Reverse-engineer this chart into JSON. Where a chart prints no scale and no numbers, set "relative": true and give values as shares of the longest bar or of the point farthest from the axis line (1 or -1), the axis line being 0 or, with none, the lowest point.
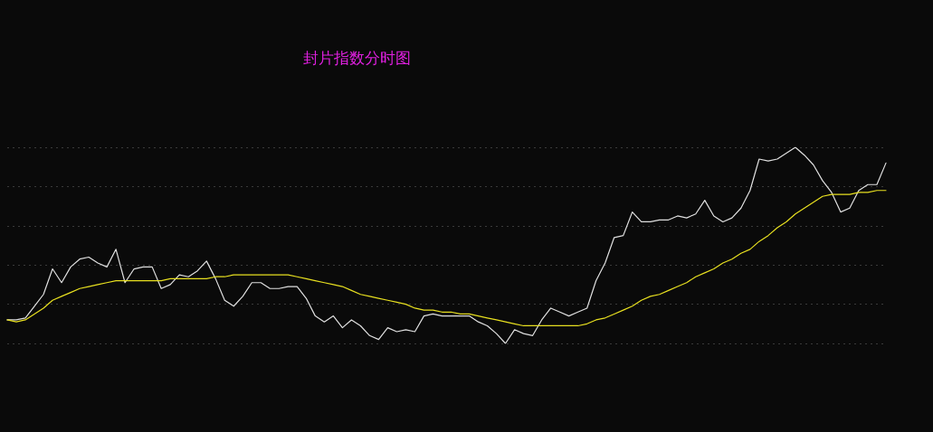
{
  "chart_data": {
    "type": "line",
    "title": "封片指数分时图",
    "relative": true,
    "grid": "y",
    "marker": "none",
    "line_style": "solid",
    "categories": [
      null,
      null,
      null,
      null,
      null,
      null,
      null,
      null,
      null,
      null,
      null,
      null,
      null,
      null,
      null,
      null,
      null,
      null,
      null,
      null,
      null,
      null,
      null,
      null,
      null,
      null,
      null,
      null,
      null,
      null,
      null,
      null,
      null,
      null,
      null,
      null,
      null,
      null,
      null,
      null,
      null,
      null,
      null,
      null,
      null,
      null,
      null,
      null,
      null,
      null,
      null,
      null,
      null,
      null,
      null,
      null,
      null,
      null,
      null,
      null,
      null,
      null,
      null,
      null,
      null,
      null,
      null,
      null,
      null,
      null,
      null,
      null,
      null,
      null,
      null,
      null,
      null,
      null,
      null,
      null,
      null,
      null,
      null,
      null,
      null,
      null,
      null,
      null,
      null,
      null,
      null,
      null,
      null,
      null,
      null,
      null,
      null,
      null
    ],
    "series": [
      {
        "color": "#e0e0e0",
        "values": [
          0.12,
          0.12,
          0.13,
          0.19,
          0.25,
          0.38,
          0.31,
          0.39,
          0.43,
          0.44,
          0.41,
          0.39,
          0.48,
          0.31,
          0.38,
          0.39,
          0.39,
          0.28,
          0.3,
          0.35,
          0.34,
          0.37,
          0.42,
          0.33,
          0.22,
          0.19,
          0.24,
          0.31,
          0.31,
          0.28,
          0.28,
          0.29,
          0.29,
          0.23,
          0.14,
          0.11,
          0.14,
          0.08,
          0.12,
          0.09,
          0.04,
          0.02,
          0.08,
          0.06,
          0.07,
          0.06,
          0.14,
          0.15,
          0.14,
          0.14,
          0.14,
          0.14,
          0.11,
          0.09,
          0.05,
          0,
          0.07,
          0.05,
          0.04,
          0.12,
          0.18,
          0.16,
          0.14,
          0.16,
          0.18,
          0.32,
          0.41,
          0.54,
          0.55,
          0.67,
          0.62,
          0.62,
          0.63,
          0.63,
          0.65,
          0.64,
          0.66,
          0.73,
          0.65,
          0.62,
          0.64,
          0.69,
          0.78,
          0.94,
          0.93,
          0.94,
          0.97,
          1,
          0.96,
          0.91,
          0.83,
          0.77,
          0.67,
          0.69,
          0.78,
          0.81,
          0.81,
          0.92
        ]
      },
      {
        "color": "#e8e020",
        "values": [
          0.12,
          0.11,
          0.12,
          0.15,
          0.18,
          0.22,
          0.24,
          0.26,
          0.28,
          0.29,
          0.3,
          0.31,
          0.32,
          0.32,
          0.32,
          0.32,
          0.32,
          0.32,
          0.33,
          0.33,
          0.33,
          0.33,
          0.33,
          0.34,
          0.34,
          0.35,
          0.35,
          0.35,
          0.35,
          0.35,
          0.35,
          0.35,
          0.34,
          0.33,
          0.32,
          0.31,
          0.3,
          0.29,
          0.27,
          0.25,
          0.24,
          0.23,
          0.22,
          0.21,
          0.2,
          0.18,
          0.17,
          0.17,
          0.16,
          0.16,
          0.15,
          0.15,
          0.14,
          0.13,
          0.12,
          0.11,
          0.1,
          0.09,
          0.09,
          0.09,
          0.09,
          0.09,
          0.09,
          0.09,
          0.1,
          0.12,
          0.13,
          0.15,
          0.17,
          0.19,
          0.22,
          0.24,
          0.25,
          0.27,
          0.29,
          0.31,
          0.34,
          0.36,
          0.38,
          0.41,
          0.43,
          0.46,
          0.48,
          0.52,
          0.55,
          0.59,
          0.62,
          0.66,
          0.69,
          0.72,
          0.75,
          0.76,
          0.76,
          0.76,
          0.77,
          0.77,
          0.78,
          0.78
        ]
      }
    ]
  }
}
